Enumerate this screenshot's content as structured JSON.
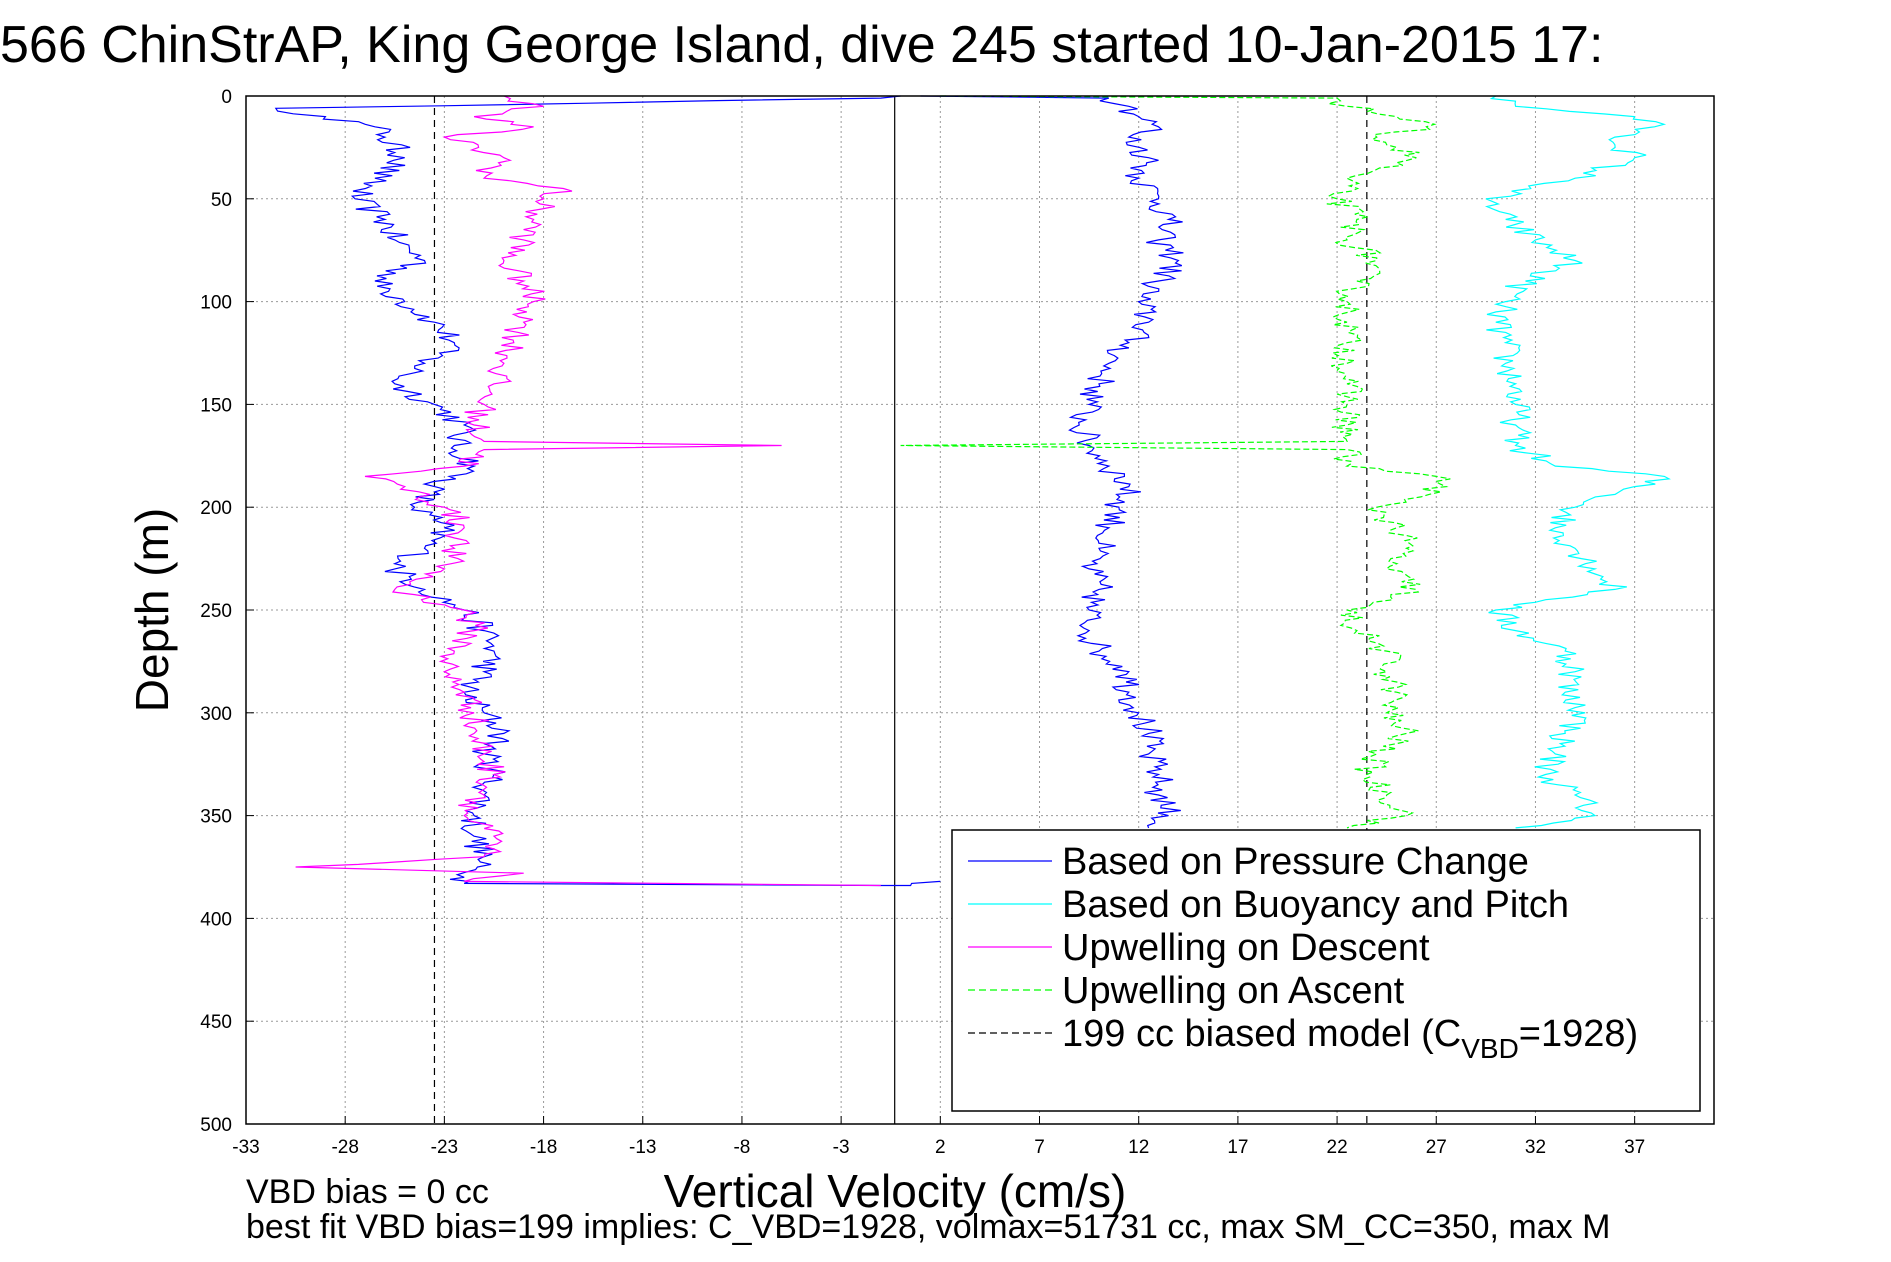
{
  "chart_data": {
    "type": "line",
    "title": "566 ChinStrAP, King George Island, dive 245 started 10-Jan-2015 17:",
    "xlabel": "Vertical Velocity (cm/s)",
    "ylabel": "Depth (m)",
    "xlim": [
      -33,
      41
    ],
    "ylim": [
      0,
      500
    ],
    "y_reversed": true,
    "grid": true,
    "xticks": [
      "-33",
      "-28",
      "-23",
      "-18",
      "-13",
      "-8",
      "-3",
      "2",
      "7",
      "12",
      "17",
      "22",
      "27",
      "32",
      "37"
    ],
    "yticks": [
      "0",
      "50",
      "100",
      "150",
      "200",
      "250",
      "300",
      "350",
      "400",
      "450",
      "500"
    ],
    "legend_placement": "bottom-right",
    "legend": [
      {
        "label": "Based on Pressure Change",
        "color": "#0000ff",
        "dash": "solid",
        "sub_label": "",
        "suffix": ""
      },
      {
        "label": "Based on Buoyancy and Pitch",
        "color": "#00ffff",
        "dash": "solid",
        "sub_label": "",
        "suffix": ""
      },
      {
        "label": "Upwelling on Descent",
        "color": "#ff00ff",
        "dash": "solid",
        "sub_label": "",
        "suffix": ""
      },
      {
        "label": "Upwelling on Ascent",
        "color": "#00ff00",
        "dash": "dashed",
        "sub_label": "",
        "suffix": ""
      },
      {
        "label": "199 cc biased model (C",
        "color": "#000000",
        "dash": "dashed",
        "sub_label": "VBD",
        "suffix": "=1928)"
      }
    ],
    "vertical_lines": [
      {
        "x": -23.5,
        "color": "#000000",
        "dash": "dashed"
      },
      {
        "x": -0.3,
        "color": "#000000",
        "dash": "solid"
      },
      {
        "x": 23.5,
        "color": "#000000",
        "dash": "dashed"
      }
    ],
    "series": [
      {
        "color": "#0000ff",
        "dash": "solid",
        "points": [
          [
            0,
            0
          ],
          [
            -1,
            1
          ],
          [
            -31.5,
            6
          ],
          [
            -29,
            10
          ],
          [
            -26.5,
            15
          ],
          [
            -26,
            20
          ],
          [
            -25,
            30
          ],
          [
            -26.5,
            40
          ],
          [
            -27.5,
            50
          ],
          [
            -26,
            60
          ],
          [
            -25.5,
            70
          ],
          [
            -24,
            80
          ],
          [
            -26.5,
            90
          ],
          [
            -25,
            100
          ],
          [
            -23.5,
            110
          ],
          [
            -22.5,
            120
          ],
          [
            -24,
            130
          ],
          [
            -25.5,
            140
          ],
          [
            -23.5,
            150
          ],
          [
            -22,
            160
          ],
          [
            -22.5,
            170
          ],
          [
            -21.5,
            180
          ],
          [
            -23.5,
            190
          ],
          [
            -24.5,
            200
          ],
          [
            -23,
            210
          ],
          [
            -24,
            220
          ],
          [
            -25.5,
            230
          ],
          [
            -24,
            240
          ],
          [
            -22,
            250
          ],
          [
            -21,
            260
          ],
          [
            -20.5,
            270
          ],
          [
            -21,
            280
          ],
          [
            -22,
            290
          ],
          [
            -21,
            300
          ],
          [
            -20,
            310
          ],
          [
            -21,
            320
          ],
          [
            -20.5,
            330
          ],
          [
            -21,
            340
          ],
          [
            -21.5,
            350
          ],
          [
            -21.5,
            360
          ],
          [
            -21,
            370
          ],
          [
            -22,
            380
          ],
          [
            -22,
            383
          ],
          [
            -1,
            384
          ],
          [
            0.5,
            384
          ],
          [
            2,
            382
          ]
        ]
      },
      {
        "color": "#0000ff",
        "dash": "solid",
        "points": [
          [
            1,
            0
          ],
          [
            10.5,
            1
          ],
          [
            11.5,
            5
          ],
          [
            12,
            10
          ],
          [
            13,
            15
          ],
          [
            11.5,
            20
          ],
          [
            12.5,
            30
          ],
          [
            12,
            40
          ],
          [
            13,
            50
          ],
          [
            13.5,
            60
          ],
          [
            13,
            70
          ],
          [
            14,
            80
          ],
          [
            13,
            90
          ],
          [
            12,
            100
          ],
          [
            12.5,
            110
          ],
          [
            11.5,
            120
          ],
          [
            10.5,
            130
          ],
          [
            10,
            140
          ],
          [
            9.5,
            150
          ],
          [
            9,
            160
          ],
          [
            9.5,
            170
          ],
          [
            10.5,
            180
          ],
          [
            11.5,
            190
          ],
          [
            11,
            200
          ],
          [
            10.5,
            210
          ],
          [
            10,
            220
          ],
          [
            9.5,
            230
          ],
          [
            10,
            240
          ],
          [
            9.5,
            250
          ],
          [
            9.5,
            260
          ],
          [
            10,
            270
          ],
          [
            11.5,
            280
          ],
          [
            11.5,
            290
          ],
          [
            12,
            300
          ],
          [
            12.5,
            310
          ],
          [
            12.5,
            320
          ],
          [
            13,
            330
          ],
          [
            13,
            340
          ],
          [
            13.5,
            350
          ],
          [
            12.5,
            356
          ]
        ]
      },
      {
        "color": "#00ffff",
        "dash": "solid",
        "points": [
          [
            30,
            0
          ],
          [
            31,
            5
          ],
          [
            37,
            10
          ],
          [
            38,
            15
          ],
          [
            36,
            20
          ],
          [
            37,
            30
          ],
          [
            34,
            40
          ],
          [
            29.5,
            50
          ],
          [
            30.5,
            60
          ],
          [
            32,
            70
          ],
          [
            34,
            80
          ],
          [
            31.5,
            90
          ],
          [
            30.5,
            100
          ],
          [
            30,
            110
          ],
          [
            30.5,
            120
          ],
          [
            30.5,
            130
          ],
          [
            31,
            140
          ],
          [
            31,
            150
          ],
          [
            31,
            160
          ],
          [
            31,
            170
          ],
          [
            33,
            180
          ],
          [
            38.5,
            185
          ],
          [
            37,
            190
          ],
          [
            34,
            200
          ],
          [
            33,
            210
          ],
          [
            34,
            220
          ],
          [
            35,
            230
          ],
          [
            36,
            240
          ],
          [
            30,
            250
          ],
          [
            31,
            260
          ],
          [
            33.5,
            270
          ],
          [
            34,
            280
          ],
          [
            33.5,
            290
          ],
          [
            34.5,
            300
          ],
          [
            33.5,
            310
          ],
          [
            33,
            320
          ],
          [
            32.5,
            330
          ],
          [
            34,
            340
          ],
          [
            35,
            350
          ],
          [
            31,
            356
          ]
        ]
      },
      {
        "color": "#ff00ff",
        "dash": "solid",
        "points": [
          [
            -20,
            0
          ],
          [
            -18,
            5
          ],
          [
            -21.5,
            10
          ],
          [
            -18.5,
            15
          ],
          [
            -23,
            20
          ],
          [
            -20,
            30
          ],
          [
            -21,
            40
          ],
          [
            -17,
            45
          ],
          [
            -18,
            50
          ],
          [
            -18.5,
            60
          ],
          [
            -19,
            70
          ],
          [
            -20,
            80
          ],
          [
            -19,
            90
          ],
          [
            -18.5,
            100
          ],
          [
            -19,
            110
          ],
          [
            -19.5,
            120
          ],
          [
            -20,
            130
          ],
          [
            -20.5,
            140
          ],
          [
            -21,
            150
          ],
          [
            -21.5,
            160
          ],
          [
            -21,
            168
          ],
          [
            -6,
            170
          ],
          [
            -21,
            172
          ],
          [
            -22,
            180
          ],
          [
            -27,
            185
          ],
          [
            -25,
            190
          ],
          [
            -23,
            200
          ],
          [
            -22,
            210
          ],
          [
            -22.5,
            220
          ],
          [
            -23,
            230
          ],
          [
            -25.5,
            240
          ],
          [
            -22,
            250
          ],
          [
            -21.5,
            260
          ],
          [
            -22.5,
            270
          ],
          [
            -23,
            280
          ],
          [
            -22,
            290
          ],
          [
            -21.5,
            300
          ],
          [
            -21.5,
            310
          ],
          [
            -21,
            320
          ],
          [
            -20.5,
            330
          ],
          [
            -21,
            340
          ],
          [
            -22,
            350
          ],
          [
            -20.5,
            360
          ],
          [
            -21,
            370
          ],
          [
            -30.5,
            375
          ],
          [
            -19,
            378
          ],
          [
            -22,
            382
          ],
          [
            -1,
            384
          ]
        ]
      },
      {
        "color": "#00ff00",
        "dash": "dashed",
        "points": [
          [
            2,
            0
          ],
          [
            22,
            1
          ],
          [
            22.5,
            5
          ],
          [
            25,
            10
          ],
          [
            26.5,
            15
          ],
          [
            24,
            20
          ],
          [
            25,
            25
          ],
          [
            26,
            30
          ],
          [
            22.5,
            40
          ],
          [
            22,
            50
          ],
          [
            23,
            60
          ],
          [
            22.5,
            70
          ],
          [
            24,
            80
          ],
          [
            23,
            90
          ],
          [
            22.5,
            100
          ],
          [
            22.5,
            110
          ],
          [
            22.5,
            120
          ],
          [
            22.5,
            130
          ],
          [
            22.5,
            140
          ],
          [
            22.5,
            150
          ],
          [
            22.5,
            160
          ],
          [
            22.5,
            168
          ],
          [
            0,
            170
          ],
          [
            22.5,
            172
          ],
          [
            22.5,
            180
          ],
          [
            27,
            185
          ],
          [
            27.5,
            190
          ],
          [
            24,
            200
          ],
          [
            25,
            210
          ],
          [
            25.5,
            220
          ],
          [
            24.5,
            230
          ],
          [
            26,
            240
          ],
          [
            22.5,
            250
          ],
          [
            23,
            260
          ],
          [
            24.5,
            270
          ],
          [
            24.5,
            280
          ],
          [
            25,
            290
          ],
          [
            24.5,
            300
          ],
          [
            25.5,
            310
          ],
          [
            24,
            320
          ],
          [
            23.5,
            330
          ],
          [
            24.5,
            340
          ],
          [
            25.5,
            350
          ],
          [
            22.5,
            356
          ]
        ]
      }
    ]
  },
  "annotations": {
    "line1": "VBD bias = 0 cc",
    "line2": "best fit VBD bias=199 implies: C_VBD=1928, volmax=51731 cc, max SM_CC=350, max M"
  }
}
